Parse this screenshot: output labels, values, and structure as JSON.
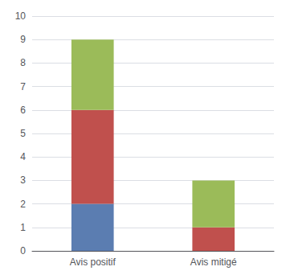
{
  "chart_data": {
    "type": "bar",
    "stacked": true,
    "categories": [
      "Avis positif",
      "Avis mitigé"
    ],
    "series": [
      {
        "color": "#5b7db1",
        "values": [
          2,
          0
        ]
      },
      {
        "color": "#c0504d",
        "values": [
          4,
          1
        ]
      },
      {
        "color": "#9bbb59",
        "values": [
          3,
          2
        ]
      }
    ],
    "ylim": [
      0,
      10
    ],
    "yticks": [
      0,
      1,
      2,
      3,
      4,
      5,
      6,
      7,
      8,
      9,
      10
    ],
    "grid": true
  }
}
